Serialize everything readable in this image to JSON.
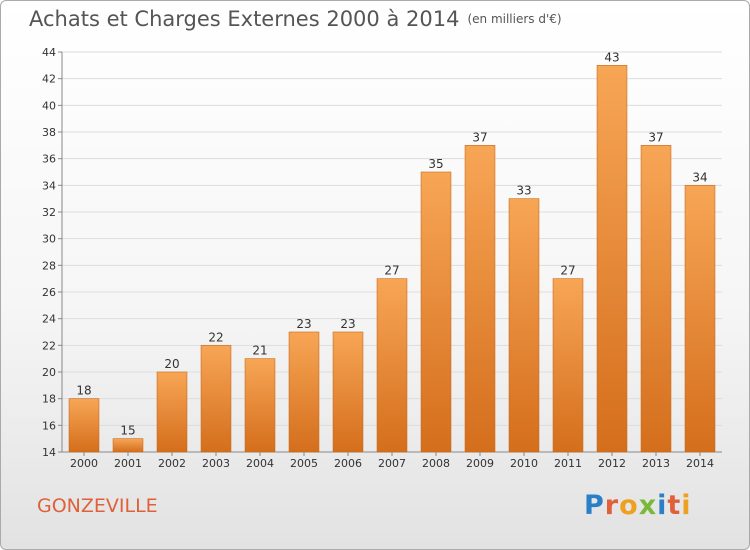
{
  "title": "Achats et Charges Externes 2000 à 2014",
  "unit_label": "(en milliers d'€)",
  "commune": "GONZEVILLE",
  "logo": {
    "letters": [
      "P",
      "r",
      "o",
      "x",
      "i",
      "t",
      "i"
    ],
    "colors": [
      "#2a7fc9",
      "#e0603a",
      "#f0a020",
      "#7ab83a",
      "#2a7fc9",
      "#e0603a",
      "#f0a020"
    ]
  },
  "colors": {
    "bar_light": "#f7a656",
    "bar_dark": "#d46e1c",
    "grid": "#dddddd",
    "title": "#555555",
    "commune": "#e0603a"
  },
  "chart_data": {
    "type": "bar",
    "title": "Achats et Charges Externes 2000 à 2014",
    "subtitle": "(en milliers d'€)",
    "xlabel": "",
    "ylabel": "",
    "categories": [
      "2000",
      "2001",
      "2002",
      "2003",
      "2004",
      "2005",
      "2006",
      "2007",
      "2008",
      "2009",
      "2010",
      "2011",
      "2012",
      "2013",
      "2014"
    ],
    "values": [
      18,
      15,
      20,
      22,
      21,
      23,
      23,
      27,
      35,
      37,
      33,
      27,
      43,
      37,
      34
    ],
    "ylim": [
      14,
      44
    ],
    "yticks": [
      14,
      16,
      18,
      20,
      22,
      24,
      26,
      28,
      30,
      32,
      34,
      36,
      38,
      40,
      42,
      44
    ],
    "grid": true,
    "legend": "none"
  }
}
